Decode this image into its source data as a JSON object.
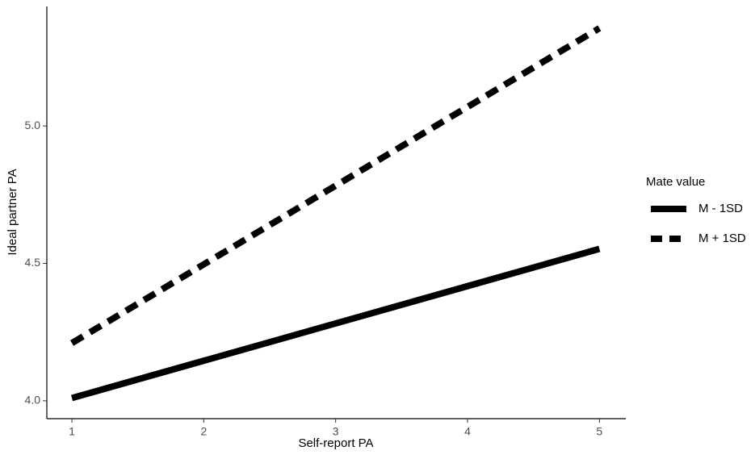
{
  "chart_data": {
    "type": "line",
    "x_label": "Self-report PA",
    "y_label": "Ideal partner PA",
    "x": [
      1,
      5
    ],
    "series": [
      {
        "name": "M - 1SD",
        "color": "#000000",
        "linetype": "solid",
        "values": [
          4.01,
          4.553
        ]
      },
      {
        "name": "M + 1SD",
        "color": "#000000",
        "linetype": "dashed",
        "values": [
          4.21,
          5.356
        ]
      }
    ],
    "legend_title": "Mate value",
    "legend": "right",
    "xlim": [
      0.81,
      5.2
    ],
    "xticks": [
      1,
      2,
      3,
      4,
      5
    ],
    "ylim": [
      3.935,
      5.435
    ],
    "yticks": [
      {
        "value": 4,
        "label": "4.0"
      },
      {
        "value": 4.5,
        "label": "4.5"
      },
      {
        "value": 5,
        "label": "5.0"
      }
    ],
    "grid": false
  }
}
